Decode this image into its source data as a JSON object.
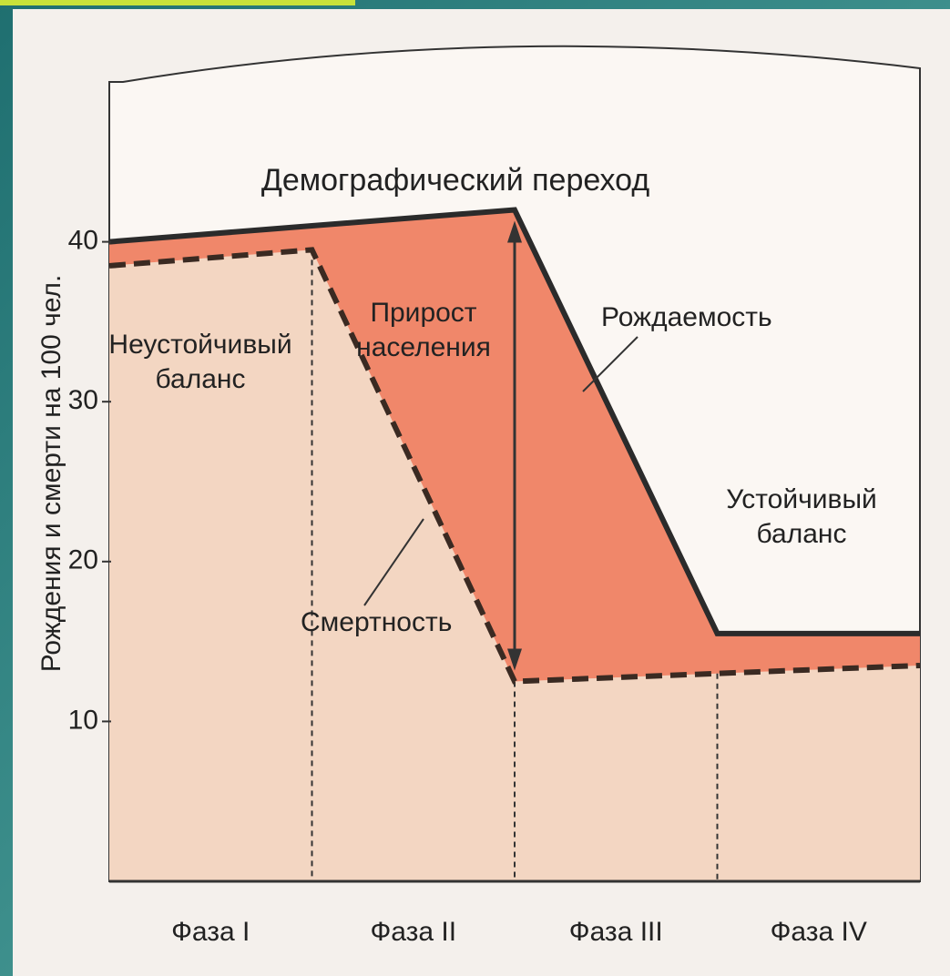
{
  "chart_data": {
    "type": "line",
    "title": "Демографический переход",
    "y_label": "Рождения и смерти на 100 чел.",
    "phases": [
      "Фаза I",
      "Фаза II",
      "Фаза III",
      "Фаза IV"
    ],
    "series": [
      {
        "name": "Рождаемость",
        "color": "#2b2b2b",
        "line_style": "solid",
        "values": [
          40,
          41,
          42,
          15.5,
          15.5
        ]
      },
      {
        "name": "Смертность",
        "color": "#3a2a22",
        "line_style": "dashed",
        "values": [
          38.5,
          39.5,
          12.5,
          13,
          13.5
        ]
      }
    ],
    "annotations": [
      "Неустойчивый баланс",
      "Прирост населения",
      "Устойчивый баланс"
    ],
    "area_color": "#f0876a",
    "base_color": "#f3d6c2",
    "ylim": [
      0,
      50
    ],
    "yticks": [
      10,
      20,
      30,
      40
    ]
  }
}
